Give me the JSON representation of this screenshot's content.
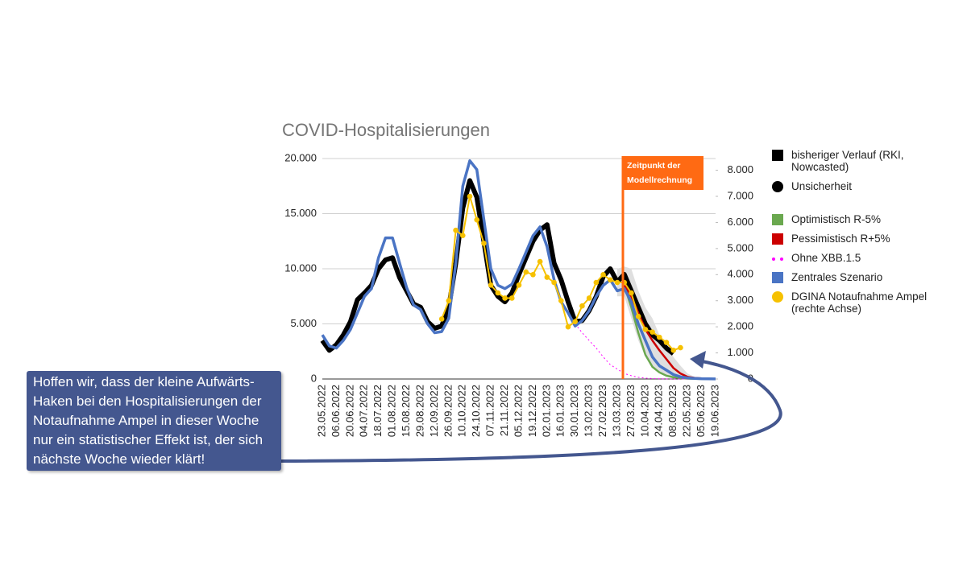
{
  "chart_data": {
    "type": "line",
    "title": "COVID-Hospitalisierungen",
    "categories": [
      "23.05.2022",
      null,
      "06.06.2022",
      null,
      "20.06.2022",
      null,
      "04.07.2022",
      null,
      "18.07.2022",
      null,
      "01.08.2022",
      null,
      "15.08.2022",
      null,
      "29.08.2022",
      null,
      "12.09.2022",
      null,
      "26.09.2022",
      null,
      "10.10.2022",
      null,
      "24.10.2022",
      null,
      "07.11.2022",
      null,
      "21.11.2022",
      null,
      "05.12.2022",
      null,
      "19.12.2022",
      null,
      "02.01.2023",
      null,
      "16.01.2023",
      null,
      "30.01.2023",
      null,
      "13.02.2023",
      null,
      "27.02.2023",
      null,
      "13.03.2023",
      null,
      "27.03.2023",
      null,
      "10.04.2023",
      null,
      "24.04.2023",
      null,
      "08.05.2023",
      null,
      "22.05.2023",
      null,
      "05.06.2023",
      null,
      "19.06.2023"
    ],
    "ylim": [
      0,
      20000
    ],
    "yticks": [
      0,
      {
        "value": 5000,
        "label": "5.000"
      },
      {
        "value": 10000,
        "label": "10.000"
      },
      {
        "value": 15000,
        "label": "15.000"
      },
      {
        "value": 20000,
        "label": "20.000"
      }
    ],
    "y2lim": [
      0,
      8450
    ],
    "y2ticks": [
      0,
      {
        "value": 1000,
        "label": "1.000"
      },
      {
        "value": 2000,
        "label": "2.000"
      },
      {
        "value": 3000,
        "label": "3.000"
      },
      {
        "value": 4000,
        "label": "4.000"
      },
      {
        "value": 5000,
        "label": "5.000"
      },
      {
        "value": 6000,
        "label": "6.000"
      },
      {
        "value": 7000,
        "label": "7.000"
      },
      {
        "value": 8000,
        "label": "8.000"
      }
    ],
    "grid": true,
    "annotation": "Zeitpunkt der Modellrechnung",
    "callout": "Hoffen wir, dass der kleine Aufwärts-Haken bei den Hospitalisierungen der Notaufnahme Ampel in dieser Woche nur ein statistischer Effekt ist, der sich nächste Woche wieder klärt!",
    "series": [
      {
        "name": "bisheriger Verlauf (RKI, Nowcasted)",
        "color": "#000000",
        "width": 6,
        "marker": "square",
        "values": [
          3500,
          2600,
          3100,
          4000,
          5200,
          7200,
          7800,
          8500,
          10000,
          10800,
          11000,
          9200,
          8000,
          6800,
          6500,
          5200,
          4600,
          4800,
          6500,
          10500,
          15500,
          18000,
          16500,
          12500,
          8500,
          7500,
          7000,
          7800,
          9500,
          11000,
          12500,
          13500,
          14000,
          10500,
          9000,
          7000,
          5200,
          5300,
          6200,
          7500,
          9300,
          10000,
          8800,
          9500,
          8000,
          6500,
          5000,
          4000,
          3500,
          2800,
          2300,
          null,
          null,
          null,
          null,
          null,
          null
        ]
      },
      {
        "name": "Unsicherheit",
        "type": "band",
        "color": "#000000",
        "band_color": "#d9d9d9",
        "marker": "circle",
        "high": [
          null,
          null,
          null,
          null,
          null,
          null,
          null,
          null,
          null,
          null,
          null,
          null,
          null,
          null,
          null,
          null,
          null,
          null,
          null,
          null,
          null,
          null,
          null,
          null,
          null,
          null,
          null,
          null,
          null,
          null,
          null,
          null,
          null,
          null,
          null,
          null,
          null,
          null,
          null,
          null,
          null,
          null,
          10000,
          10200,
          10000,
          8000,
          6500,
          5500,
          4000,
          3000,
          2000,
          1200,
          500,
          200,
          null,
          null,
          null
        ],
        "low": [
          null,
          null,
          null,
          null,
          null,
          null,
          null,
          null,
          null,
          null,
          null,
          null,
          null,
          null,
          null,
          null,
          null,
          null,
          null,
          null,
          null,
          null,
          null,
          null,
          null,
          null,
          null,
          null,
          null,
          null,
          null,
          null,
          null,
          null,
          null,
          null,
          null,
          null,
          null,
          null,
          null,
          null,
          7500,
          7500,
          5500,
          3500,
          2000,
          1200,
          700,
          400,
          200,
          100,
          50,
          0,
          null,
          null,
          null
        ]
      },
      {
        "name": "Optimistisch R-5%",
        "color": "#6aa84f",
        "width": 2.5,
        "marker": "square",
        "values": [
          null,
          null,
          null,
          null,
          null,
          null,
          null,
          null,
          null,
          null,
          null,
          null,
          null,
          null,
          null,
          null,
          null,
          null,
          null,
          null,
          null,
          null,
          null,
          null,
          null,
          null,
          null,
          null,
          null,
          null,
          null,
          null,
          null,
          null,
          null,
          null,
          null,
          null,
          null,
          null,
          null,
          null,
          null,
          8500,
          6500,
          4200,
          2200,
          1100,
          600,
          300,
          150,
          80,
          40,
          20,
          10,
          5,
          0
        ]
      },
      {
        "name": "Pessimistisch R+5%",
        "color": "#cc0000",
        "width": 2.5,
        "marker": "square",
        "values": [
          null,
          null,
          null,
          null,
          null,
          null,
          null,
          null,
          null,
          null,
          null,
          null,
          null,
          null,
          null,
          null,
          null,
          null,
          null,
          null,
          null,
          null,
          null,
          null,
          null,
          null,
          null,
          null,
          null,
          null,
          null,
          null,
          null,
          null,
          null,
          null,
          null,
          null,
          null,
          null,
          null,
          null,
          null,
          8500,
          7500,
          6000,
          4500,
          3500,
          2600,
          1800,
          1000,
          500,
          200,
          100,
          50,
          20,
          10
        ]
      },
      {
        "name": "Ohne XBB.1.5",
        "color": "#ff00ff",
        "width": 1,
        "dash": true,
        "marker": "dotted",
        "values": [
          null,
          null,
          null,
          null,
          null,
          null,
          null,
          null,
          null,
          null,
          null,
          null,
          null,
          null,
          null,
          null,
          null,
          null,
          null,
          null,
          null,
          null,
          null,
          null,
          null,
          null,
          null,
          null,
          null,
          null,
          null,
          null,
          null,
          null,
          null,
          null,
          5000,
          4200,
          3500,
          2800,
          2000,
          1300,
          900,
          500,
          300,
          150,
          80,
          40,
          20,
          10,
          5,
          0,
          0,
          0,
          0,
          0,
          0
        ]
      },
      {
        "name": "Zentrales Szenario",
        "color": "#4a74c4",
        "width": 3.5,
        "marker": "square",
        "values": [
          4000,
          3000,
          2800,
          3500,
          4500,
          6000,
          7500,
          8200,
          11000,
          12800,
          12800,
          10500,
          8300,
          6700,
          6300,
          5000,
          4200,
          4300,
          5500,
          10500,
          17500,
          19800,
          19000,
          14500,
          10000,
          8500,
          8200,
          8600,
          10000,
          11500,
          13000,
          13800,
          12000,
          9000,
          7000,
          6000,
          4800,
          5300,
          6200,
          7500,
          8500,
          9000,
          8000,
          8200,
          7000,
          5000,
          3500,
          2000,
          1200,
          800,
          400,
          200,
          100,
          50,
          30,
          20,
          10
        ]
      },
      {
        "name": "DGINA Notaufnahme Ampel (rechte Achse)",
        "color": "#f6c100",
        "width": 2,
        "marker": "circle",
        "axis": "y2",
        "points": true,
        "values": [
          null,
          null,
          null,
          null,
          null,
          null,
          null,
          null,
          null,
          null,
          null,
          null,
          null,
          null,
          null,
          null,
          null,
          2300,
          3000,
          5700,
          5500,
          7000,
          6100,
          5200,
          3600,
          3300,
          3100,
          3100,
          3600,
          4100,
          4000,
          4500,
          3900,
          3700,
          3000,
          2000,
          2200,
          2800,
          3100,
          3700,
          4000,
          3800,
          3700,
          3700,
          3300,
          2400,
          1900,
          1800,
          1600,
          1400,
          1100,
          1200,
          null,
          null,
          null,
          null,
          null
        ]
      }
    ]
  }
}
